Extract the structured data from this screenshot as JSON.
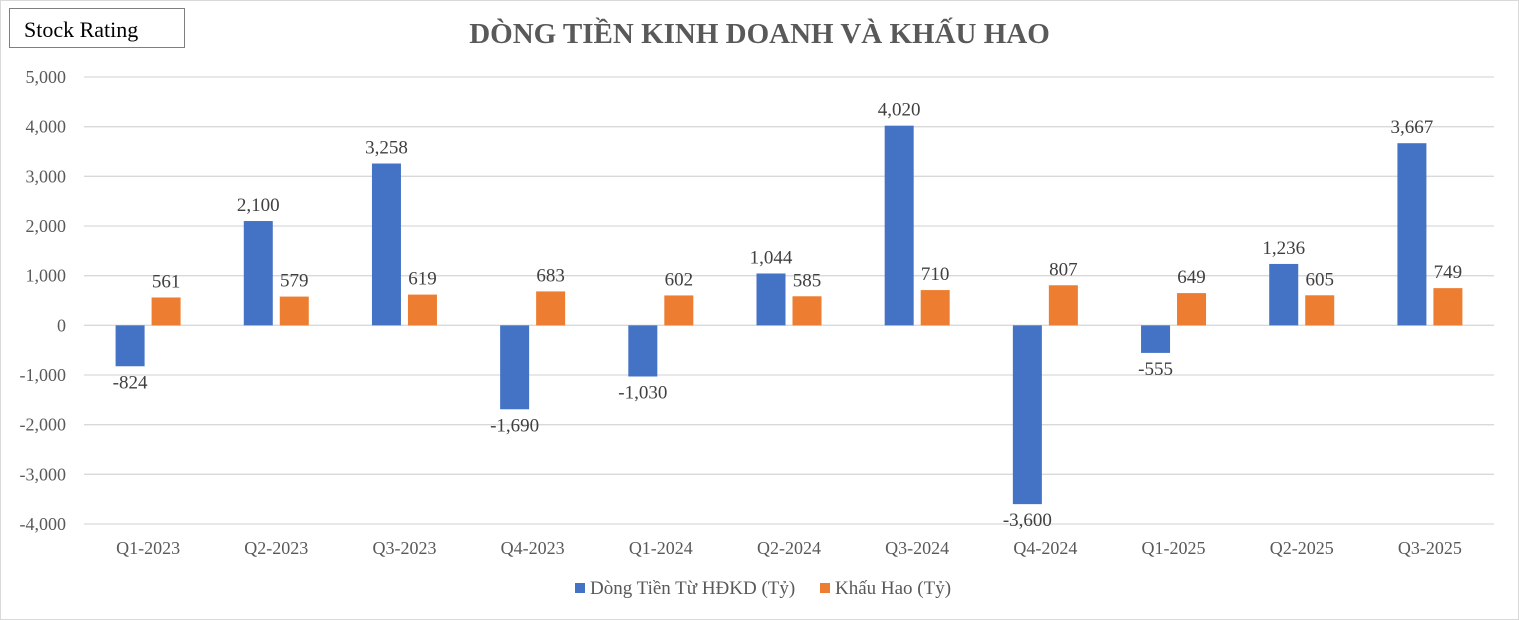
{
  "badge": {
    "label": "Stock Rating"
  },
  "chart_data": {
    "type": "bar",
    "title": "DÒNG TIỀN KINH DOANH VÀ KHẤU HAO",
    "categories": [
      "Q1-2023",
      "Q2-2023",
      "Q3-2023",
      "Q4-2023",
      "Q1-2024",
      "Q2-2024",
      "Q3-2024",
      "Q4-2024",
      "Q1-2025",
      "Q2-2025",
      "Q3-2025"
    ],
    "series": [
      {
        "name": "Dòng Tiền Từ HĐKD (Tỷ)",
        "color": "#4472c4",
        "values": [
          -824,
          2100,
          3258,
          -1690,
          -1030,
          1044,
          4020,
          -3600,
          -555,
          1236,
          3667
        ],
        "labels": [
          "-824",
          "2,100",
          "3,258",
          "-1,690",
          "-1,030",
          "1,044",
          "4,020",
          "-3,600",
          "-555",
          "1,236",
          "3,667"
        ]
      },
      {
        "name": "Khấu Hao (Tỷ)",
        "color": "#ed7d31",
        "values": [
          561,
          579,
          619,
          683,
          602,
          585,
          710,
          807,
          649,
          605,
          749
        ],
        "labels": [
          "561",
          "579",
          "619",
          "683",
          "602",
          "585",
          "710",
          "807",
          "649",
          "605",
          "749"
        ]
      }
    ],
    "ylim": [
      -4000,
      5000
    ],
    "yticks": [
      5000,
      4000,
      3000,
      2000,
      1000,
      0,
      -1000,
      -2000,
      -3000,
      -4000
    ],
    "ytick_labels": [
      "5,000",
      "4,000",
      "3,000",
      "2,000",
      "1,000",
      "0",
      "-1,000",
      "-2,000",
      "-3,000",
      "-4,000"
    ],
    "grid": true,
    "legend_position": "bottom"
  }
}
